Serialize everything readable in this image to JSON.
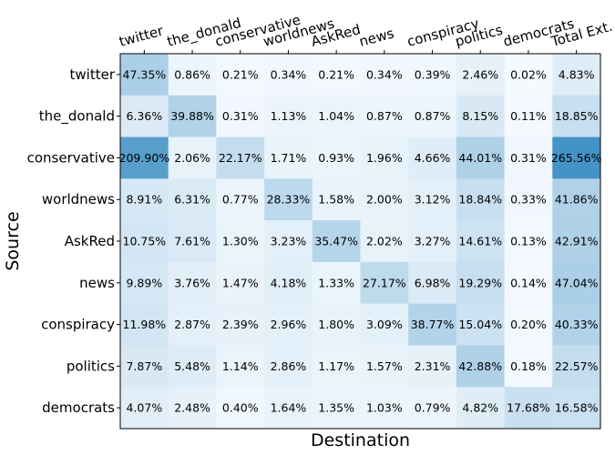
{
  "chart_data": {
    "type": "heatmap",
    "title": "",
    "xlabel": "Destination",
    "ylabel": "Source",
    "x_labels": [
      "twitter",
      "the_donald",
      "conservative",
      "worldnews",
      "AskRed",
      "news",
      "conspiracy",
      "politics",
      "democrats",
      "Total Ext."
    ],
    "y_labels": [
      "twitter",
      "the_donald",
      "conservative",
      "worldnews",
      "AskRed",
      "news",
      "conspiracy",
      "politics",
      "democrats"
    ],
    "values": [
      [
        47.35,
        0.86,
        0.21,
        0.34,
        0.21,
        0.34,
        0.39,
        2.46,
        0.02,
        4.83
      ],
      [
        6.36,
        39.88,
        0.31,
        1.13,
        1.04,
        0.87,
        0.87,
        8.15,
        0.11,
        18.85
      ],
      [
        209.9,
        2.06,
        22.17,
        1.71,
        0.93,
        1.96,
        4.66,
        44.01,
        0.31,
        265.56
      ],
      [
        8.91,
        6.31,
        0.77,
        28.33,
        1.58,
        2.0,
        3.12,
        18.84,
        0.33,
        41.86
      ],
      [
        10.75,
        7.61,
        1.3,
        3.23,
        35.47,
        2.02,
        3.27,
        14.61,
        0.13,
        42.91
      ],
      [
        9.89,
        3.76,
        1.47,
        4.18,
        1.33,
        27.17,
        6.98,
        19.29,
        0.14,
        47.04
      ],
      [
        11.98,
        2.87,
        2.39,
        2.96,
        1.8,
        3.09,
        38.77,
        15.04,
        0.2,
        40.33
      ],
      [
        7.87,
        5.48,
        1.14,
        2.86,
        1.17,
        1.57,
        2.31,
        42.88,
        0.18,
        22.57
      ],
      [
        4.07,
        2.48,
        0.4,
        1.64,
        1.35,
        1.03,
        0.79,
        4.82,
        17.68,
        16.58
      ]
    ],
    "value_suffix": "%",
    "color_min": "#f7fbff",
    "color_max": "#4292c6",
    "value_range": [
      0,
      270
    ],
    "x_tick_position": "top",
    "grid": false,
    "legend": "none"
  }
}
